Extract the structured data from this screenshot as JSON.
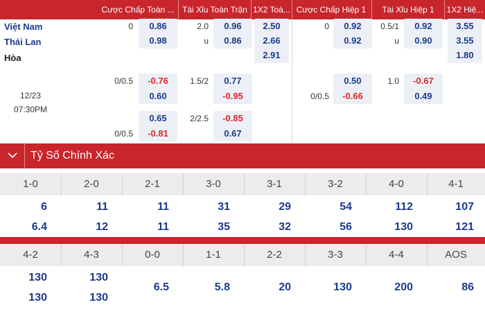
{
  "header": {
    "columns": [
      "Cược Chấp Toàn ...",
      "Tài Xỉu Toàn Trận",
      "1X2 Toà...",
      "Cược Chấp Hiệp 1",
      "Tài Xỉu Hiệp 1",
      "1X2 Hiệ..."
    ]
  },
  "match": {
    "home": "Việt Nam",
    "away": "Thái Lan",
    "draw": "Hòa",
    "date": "12/23",
    "time": "07:30PM"
  },
  "main_rows": {
    "r1": {
      "hcap_line": "0",
      "hcap_odd": "0.86",
      "ou_line": "2.0",
      "ou_odd": "0.96",
      "x12": "2.50",
      "h1_hcap_line": "0",
      "h1_hcap_odd": "0.92",
      "h1_ou_line": "0.5/1",
      "h1_ou_odd": "0.92",
      "h1_x12": "3.55"
    },
    "r2": {
      "hcap_odd": "0.98",
      "ou_line": "u",
      "ou_odd": "0.86",
      "x12": "2.66",
      "h1_hcap_odd": "0.92",
      "h1_ou_line": "u",
      "h1_ou_odd": "0.90",
      "h1_x12": "3.55"
    },
    "r3": {
      "x12": "2.91",
      "h1_x12": "1.80"
    }
  },
  "extra_rows": {
    "a1": {
      "hcap_line": "0/0.5",
      "hcap_odd": "-0.76",
      "ou_line": "1.5/2",
      "ou_odd": "0.77",
      "h1_hcap_odd": "0.50",
      "h1_ou_line": "1.0",
      "h1_ou_odd": "-0.67"
    },
    "a2": {
      "hcap_odd": "0.60",
      "ou_odd": "-0.95",
      "h1_hcap_line": "0/0.5",
      "h1_hcap_odd": "-0.66",
      "h1_ou_odd": "0.49"
    },
    "b1": {
      "hcap_odd": "0.65",
      "ou_line": "2/2.5",
      "ou_odd": "-0.85"
    },
    "b2": {
      "hcap_line": "0/0.5",
      "hcap_odd": "-0.81",
      "ou_odd": "0.67"
    }
  },
  "correct_score": {
    "title": "Tỷ Số Chính Xác",
    "row1_scores": [
      "1-0",
      "2-0",
      "2-1",
      "3-0",
      "3-1",
      "3-2",
      "4-0",
      "4-1"
    ],
    "row1_top": [
      "6",
      "11",
      "11",
      "31",
      "29",
      "54",
      "112",
      "107"
    ],
    "row1_bottom": [
      "6.4",
      "12",
      "11",
      "35",
      "32",
      "56",
      "130",
      "121"
    ],
    "row2_scores": [
      "4-2",
      "4-3",
      "0-0",
      "1-1",
      "2-2",
      "3-3",
      "4-4",
      "AOS"
    ],
    "row2_top": [
      "130",
      "130"
    ],
    "row2_bottom": [
      "130",
      "130"
    ],
    "row2_single": [
      "6.5",
      "5.8",
      "20",
      "130",
      "200",
      "86"
    ]
  },
  "colors": {
    "brand_red": "#c8252c",
    "odd_blue": "#1a3a8a",
    "negative_red": "#e0262d",
    "odd_bg": "#ecf0f6"
  },
  "icons": {
    "collapse": "chevron-down-icon"
  }
}
